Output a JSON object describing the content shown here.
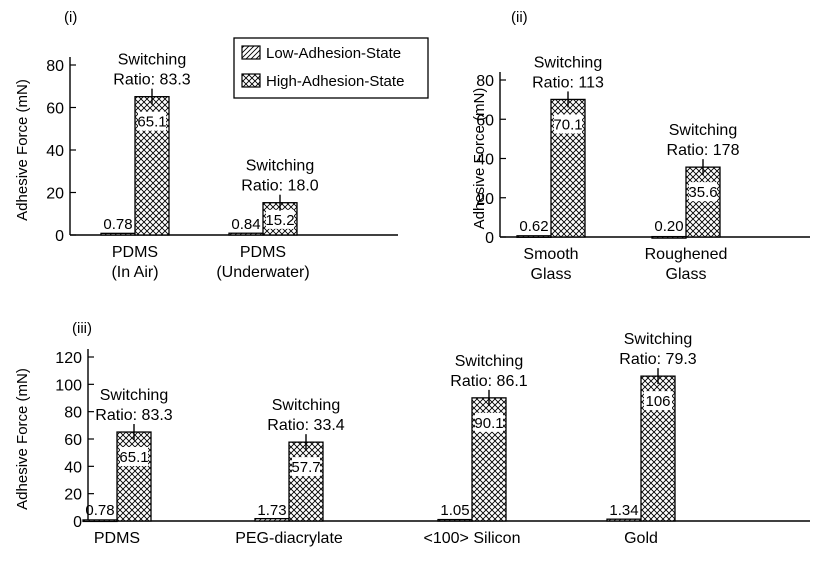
{
  "legend": {
    "items": [
      {
        "label": "Low-Adhesion-State",
        "pattern": "hatch"
      },
      {
        "label": "High-Adhesion-State",
        "pattern": "crosshatch"
      }
    ]
  },
  "chart_data": [
    {
      "panel": "(i)",
      "type": "bar",
      "ylabel": "Adhesive Force (mN)",
      "ylim": [
        0,
        80
      ],
      "yticks": [
        0,
        20,
        40,
        60,
        80
      ],
      "categories": [
        [
          "PDMS",
          "(In Air)"
        ],
        [
          "PDMS",
          "(Underwater)"
        ]
      ],
      "series": [
        {
          "name": "Low-Adhesion-State",
          "values": [
            0.78,
            0.84
          ],
          "labels": [
            "0.78",
            "0.84"
          ]
        },
        {
          "name": "High-Adhesion-State",
          "values": [
            65.1,
            15.2
          ],
          "labels": [
            "65.1",
            "15.2"
          ]
        }
      ],
      "annotations": [
        [
          "Switching",
          "Ratio: 83.3"
        ],
        [
          "Switching",
          "Ratio: 18.0"
        ]
      ]
    },
    {
      "panel": "(ii)",
      "type": "bar",
      "ylabel": "Adhesive Force (mN)",
      "ylim": [
        0,
        80
      ],
      "yticks": [
        0,
        20,
        40,
        60,
        80
      ],
      "categories": [
        [
          "Smooth",
          "Glass"
        ],
        [
          "Roughened",
          "Glass"
        ]
      ],
      "series": [
        {
          "name": "Low-Adhesion-State",
          "values": [
            0.62,
            0.2
          ],
          "labels": [
            "0.62",
            "0.20"
          ]
        },
        {
          "name": "High-Adhesion-State",
          "values": [
            70.1,
            35.6
          ],
          "labels": [
            "70.1",
            "35.6"
          ]
        }
      ],
      "annotations": [
        [
          "Switching",
          "Ratio: 113"
        ],
        [
          "Switching",
          "Ratio: 178"
        ]
      ]
    },
    {
      "panel": "(iii)",
      "type": "bar",
      "ylabel": "Adhesive Force (mN)",
      "ylim": [
        0,
        120
      ],
      "yticks": [
        0,
        20,
        40,
        60,
        80,
        100,
        120
      ],
      "categories": [
        [
          "PDMS"
        ],
        [
          "PEG-diacrylate"
        ],
        [
          "<100> Silicon"
        ],
        [
          "Gold"
        ]
      ],
      "series": [
        {
          "name": "Low-Adhesion-State",
          "values": [
            0.78,
            1.73,
            1.05,
            1.34
          ],
          "labels": [
            "0.78",
            "1.73",
            "1.05",
            "1.34"
          ]
        },
        {
          "name": "High-Adhesion-State",
          "values": [
            65.1,
            57.7,
            90.1,
            106
          ],
          "labels": [
            "65.1",
            "57.7",
            "90.1",
            "106"
          ]
        }
      ],
      "annotations": [
        [
          "Switching",
          "Ratio: 83.3"
        ],
        [
          "Switching",
          "Ratio: 33.4"
        ],
        [
          "Switching",
          "Ratio: 86.1"
        ],
        [
          "Switching",
          "Ratio: 79.3"
        ]
      ]
    }
  ]
}
